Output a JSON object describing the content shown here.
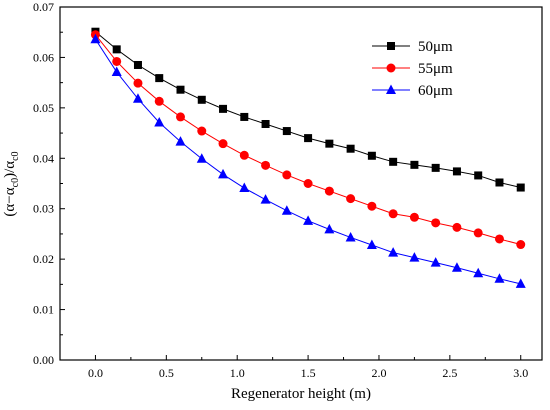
{
  "chart_data": {
    "type": "line",
    "xlabel": "Regenerator height (m)",
    "ylabel": "(α−α_c0)/α_c0",
    "ylabel_main": "(α−α",
    "ylabel_sub1": "c0",
    "ylabel_mid": ")/α",
    "ylabel_sub2": "c0",
    "xlim": [
      -0.25,
      3.15
    ],
    "ylim": [
      0.0,
      0.07
    ],
    "x_ticks": [
      0.0,
      0.5,
      1.0,
      1.5,
      2.0,
      2.5,
      3.0
    ],
    "x_tick_labels": [
      "0.0",
      "0.5",
      "1.0",
      "1.5",
      "2.0",
      "2.5",
      "3.0"
    ],
    "y_ticks": [
      0.0,
      0.01,
      0.02,
      0.03,
      0.04,
      0.05,
      0.06,
      0.07
    ],
    "y_tick_labels": [
      "0.00",
      "0.01",
      "0.02",
      "0.03",
      "0.04",
      "0.05",
      "0.06",
      "0.07"
    ],
    "grid": false,
    "legend_position": "top-right",
    "x": [
      0.0,
      0.15,
      0.3,
      0.45,
      0.6,
      0.75,
      0.9,
      1.05,
      1.2,
      1.35,
      1.5,
      1.65,
      1.8,
      1.95,
      2.1,
      2.25,
      2.4,
      2.55,
      2.7,
      2.85,
      3.0
    ],
    "series": [
      {
        "name": "50μm",
        "color": "#000000",
        "marker": "square",
        "values": [
          0.0651,
          0.0616,
          0.0585,
          0.0559,
          0.0536,
          0.0516,
          0.0498,
          0.0482,
          0.0468,
          0.0454,
          0.044,
          0.0429,
          0.0419,
          0.0405,
          0.0393,
          0.0387,
          0.0381,
          0.0374,
          0.0366,
          0.0352,
          0.0342
        ]
      },
      {
        "name": "55μm",
        "color": "#ff0000",
        "marker": "circle",
        "values": [
          0.0645,
          0.0592,
          0.0549,
          0.0513,
          0.0482,
          0.0454,
          0.0429,
          0.0406,
          0.0386,
          0.0367,
          0.035,
          0.0335,
          0.032,
          0.0305,
          0.029,
          0.0283,
          0.0272,
          0.0263,
          0.0252,
          0.024,
          0.0229
        ]
      },
      {
        "name": "60μm",
        "color": "#0000ff",
        "marker": "triangle",
        "values": [
          0.0636,
          0.0571,
          0.0518,
          0.0471,
          0.0433,
          0.0399,
          0.0368,
          0.0341,
          0.0318,
          0.0296,
          0.0276,
          0.0259,
          0.0243,
          0.0228,
          0.0213,
          0.0203,
          0.0193,
          0.0183,
          0.0172,
          0.0161,
          0.0151
        ]
      }
    ]
  }
}
